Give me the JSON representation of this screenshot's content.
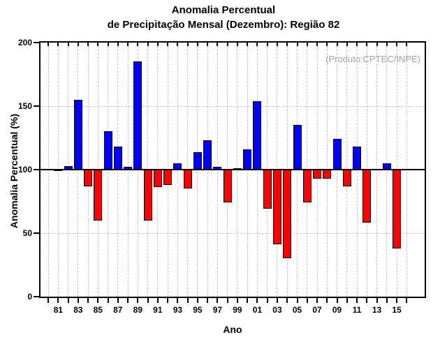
{
  "title": {
    "line1": "Anomalia Percentual",
    "line2": "de Precipitação Mensal (Dezembro): Região 82"
  },
  "source_label": "(Produto:CPTEC/INPE)",
  "chart_data": {
    "type": "bar",
    "title": "Anomalia Percentual de Precipitação Mensal (Dezembro): Região 82",
    "xlabel": "Ano",
    "ylabel": "Anomalia Percentual (%)",
    "ylim": [
      0,
      200
    ],
    "y_ticks": [
      0,
      50,
      100,
      150,
      200
    ],
    "y_gridlines": [
      50,
      150
    ],
    "baseline": 100,
    "grid": "dashed gray, vertical line at every year tick",
    "legend_position": "none",
    "categories": [
      "81",
      "82",
      "83",
      "84",
      "85",
      "86",
      "87",
      "88",
      "89",
      "90",
      "91",
      "92",
      "93",
      "94",
      "95",
      "96",
      "97",
      "98",
      "99",
      "00",
      "01",
      "02",
      "03",
      "04",
      "05",
      "06",
      "07",
      "08",
      "09",
      "10",
      "11",
      "12",
      "13",
      "14",
      "15"
    ],
    "values": [
      99,
      103,
      155,
      87,
      60,
      130,
      118,
      102,
      185,
      60,
      86,
      88,
      105,
      85,
      114,
      123,
      102,
      74,
      101,
      116,
      154,
      69,
      41,
      30,
      135,
      74,
      93,
      93,
      124,
      87,
      118,
      58,
      100,
      105,
      38
    ],
    "x_tick_years": [
      "80",
      "81",
      "82",
      "83",
      "84",
      "85",
      "86",
      "87",
      "88",
      "89",
      "90",
      "91",
      "92",
      "93",
      "94",
      "95",
      "96",
      "97",
      "98",
      "99",
      "00",
      "01",
      "02",
      "03",
      "04",
      "05",
      "06",
      "07",
      "08",
      "09",
      "10",
      "11",
      "12",
      "13",
      "14",
      "15",
      "16"
    ],
    "x_label_years": [
      "81",
      "83",
      "85",
      "87",
      "89",
      "91",
      "93",
      "95",
      "97",
      "99",
      "01",
      "03",
      "05",
      "07",
      "09",
      "11",
      "13",
      "15"
    ],
    "colors": {
      "above_baseline": "#0000ff",
      "below_baseline": "#ff0000",
      "bar_border": "#000000",
      "gridline": "#c0c0c0",
      "axis": "#000000",
      "source_text": "#a0a0a0"
    }
  }
}
